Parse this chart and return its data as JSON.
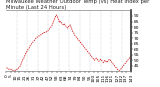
{
  "title": "Milwaukee Weather Outdoor Temp (vs) Heat Index per Minute (Last 24 Hours)",
  "bg_color": "#ffffff",
  "line_color": "#cc0000",
  "grid_color": "#aaaaaa",
  "ylim": [
    40,
    95
  ],
  "yticks": [
    45,
    50,
    55,
    60,
    65,
    70,
    75,
    80,
    85,
    90
  ],
  "ytick_labels": [
    "45",
    "50",
    "55",
    "60",
    "65",
    "70",
    "75",
    "80",
    "85",
    "90"
  ],
  "temp_data": [
    43,
    43,
    42,
    42,
    42,
    42,
    41,
    41,
    41,
    41,
    41,
    41,
    42,
    42,
    43,
    44,
    45,
    47,
    49,
    51,
    52,
    54,
    56,
    57,
    59,
    60,
    61,
    63,
    64,
    65,
    66,
    67,
    68,
    69,
    70,
    71,
    71,
    72,
    72,
    73,
    73,
    74,
    74,
    75,
    75,
    75,
    76,
    76,
    77,
    78,
    79,
    80,
    81,
    83,
    85,
    87,
    89,
    91,
    90,
    88,
    86,
    84,
    85,
    84,
    83,
    82,
    83,
    82,
    81,
    80,
    79,
    80,
    81,
    82,
    80,
    78,
    76,
    75,
    73,
    72,
    71,
    70,
    69,
    68,
    67,
    66,
    65,
    64,
    63,
    62,
    61,
    60,
    59,
    58,
    57,
    56,
    55,
    54,
    53,
    52,
    51,
    50,
    51,
    52,
    51,
    50,
    49,
    50,
    51,
    50,
    49,
    48,
    49,
    50,
    49,
    48,
    49,
    50,
    51,
    50,
    49,
    48,
    47,
    46,
    45,
    44,
    43,
    42,
    41,
    41,
    41,
    42,
    43,
    44,
    45,
    46,
    47,
    48,
    49,
    50,
    51,
    52,
    53,
    54
  ],
  "vgrid_positions": [
    12,
    24,
    36,
    48,
    60,
    72,
    84,
    96,
    108,
    120,
    132
  ],
  "title_fontsize": 3.8,
  "tick_fontsize": 3.2,
  "line_width": 0.55,
  "num_xticks": 28
}
